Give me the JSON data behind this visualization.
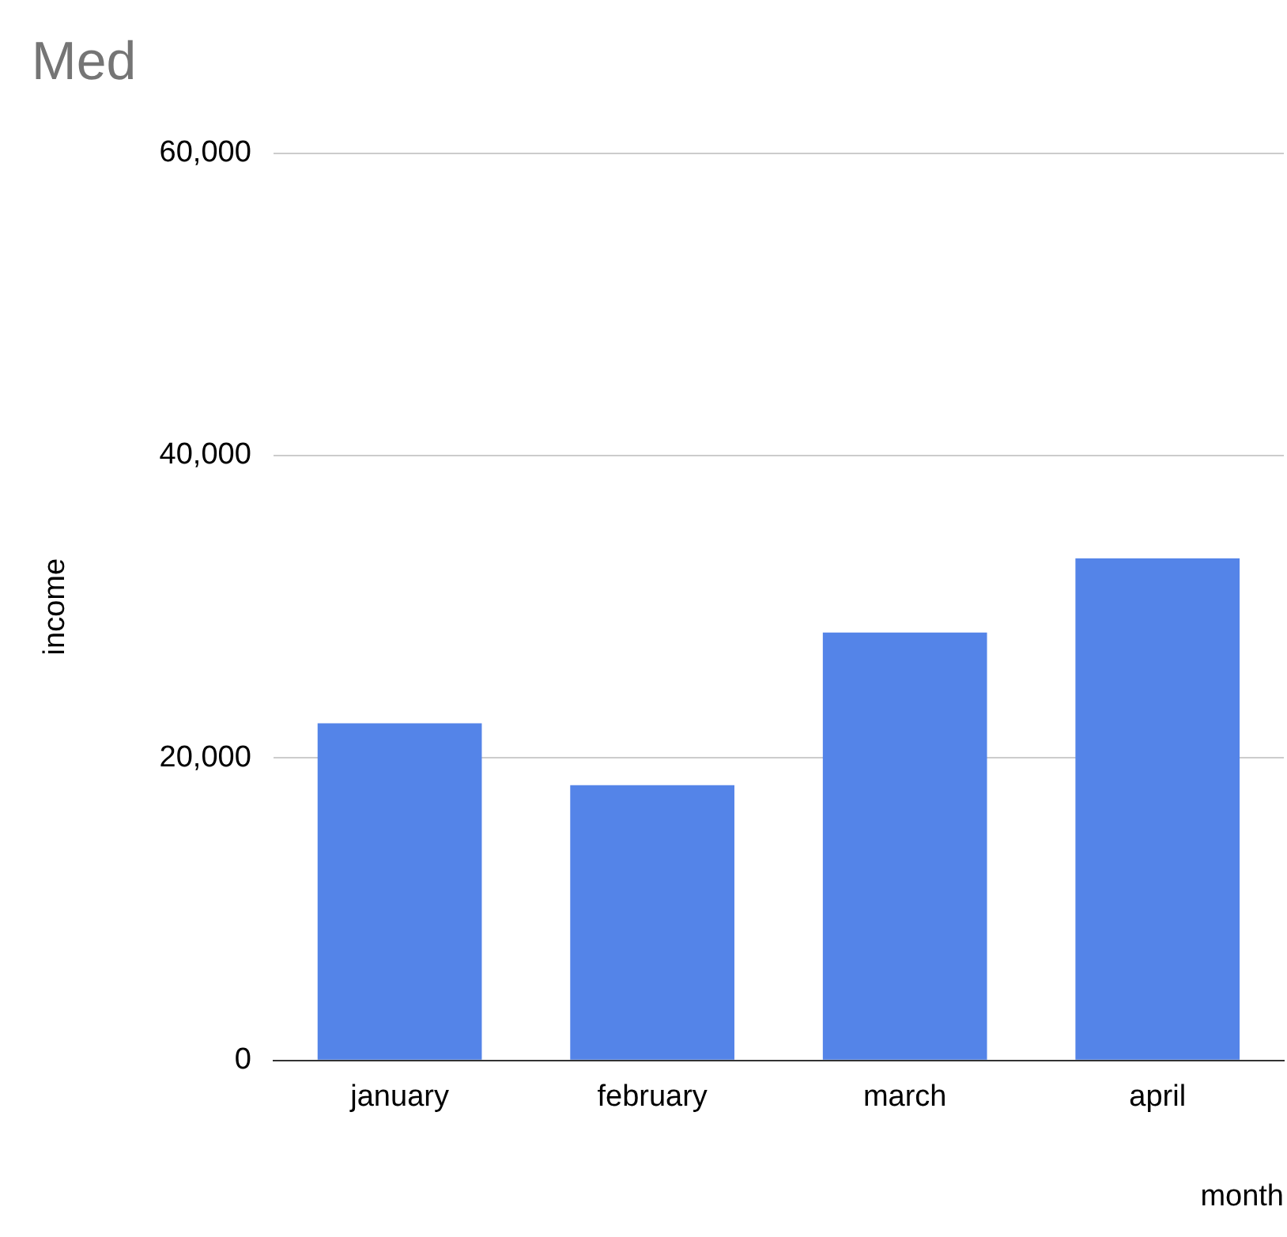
{
  "chart_data": {
    "type": "bar",
    "title": "Med",
    "xlabel": "month",
    "ylabel": "income",
    "categories": [
      "january",
      "february",
      "march",
      "april"
    ],
    "values": [
      22300,
      18200,
      28300,
      33200
    ],
    "color": "#5484e8",
    "ylim": [
      0,
      60000
    ],
    "yticks": [
      0,
      {
        "value": 20000,
        "label": "20,000"
      },
      {
        "value": 40000,
        "label": "40,000"
      },
      {
        "value": 60000,
        "label": "60,000"
      }
    ],
    "grid": "y",
    "legend": false
  }
}
